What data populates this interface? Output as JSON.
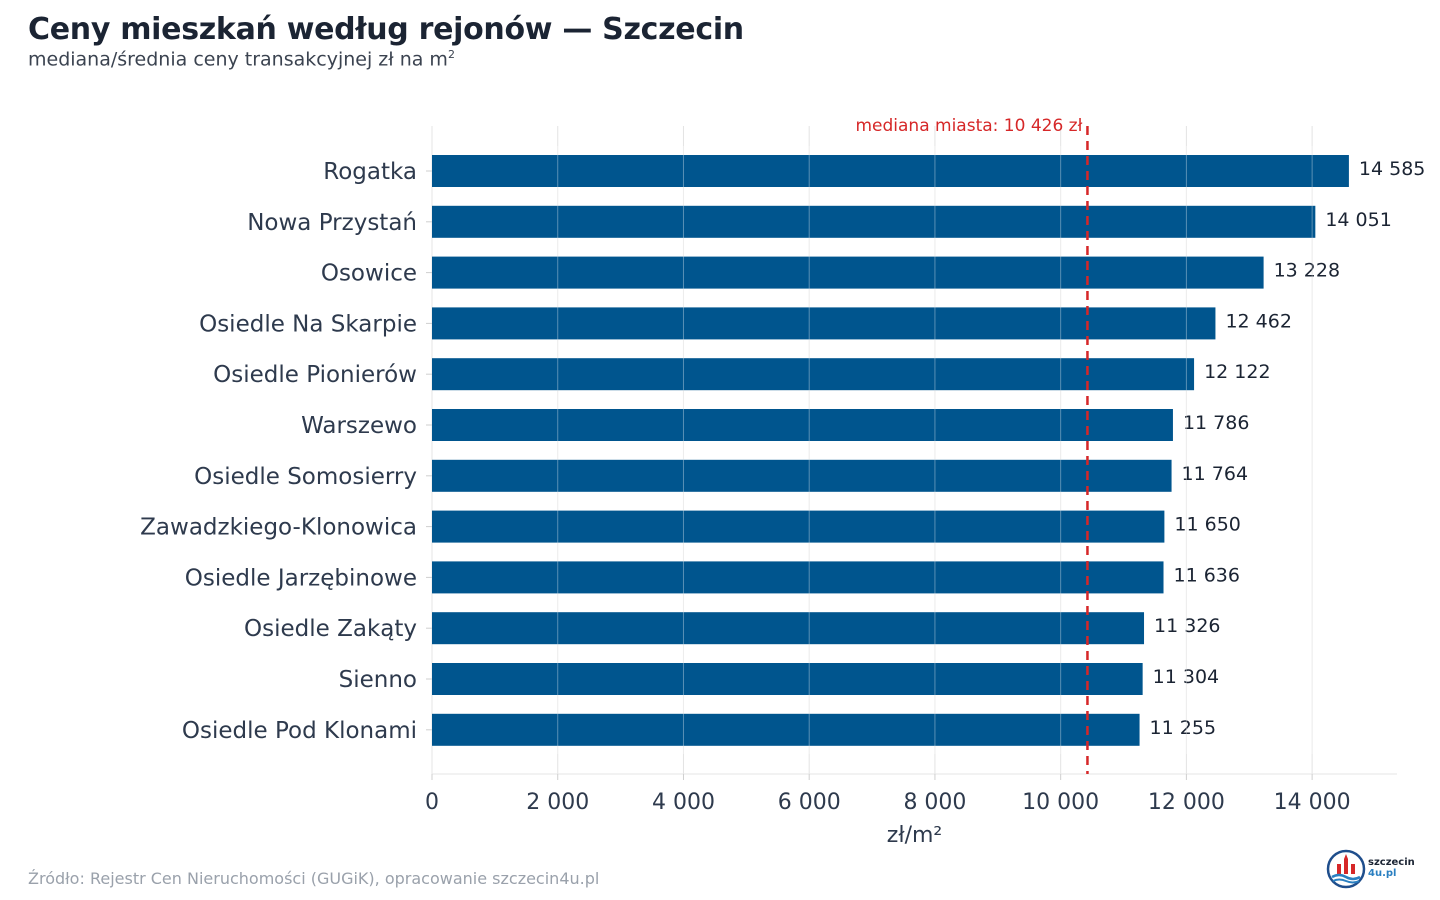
{
  "header": {
    "title": "Ceny mieszkań według rejonów — Szczecin",
    "subtitle": "mediana/średnia ceny transakcyjnej zł na m",
    "subtitle_sup": "2"
  },
  "footer": {
    "source": "Źródło: Rejestr Cen Nieruchomości (GUGiK), opracowanie szczecin4u.pl",
    "logo_line1": "szczecin",
    "logo_line2": "4u.pl"
  },
  "colors": {
    "bar": "#00558e",
    "reference_line": "#d62728",
    "grid": "#e3e3e3"
  },
  "chart_data": {
    "type": "bar",
    "orientation": "horizontal",
    "categories": [
      "Rogatka",
      "Nowa Przystań",
      "Osowice",
      "Osiedle Na Skarpie",
      "Osiedle Pionierów",
      "Warszewo",
      "Osiedle Somosierry",
      "Zawadzkiego-Klonowica",
      "Osiedle Jarzębinowe",
      "Osiedle Zakąty",
      "Sienno",
      "Osiedle Pod Klonami"
    ],
    "values": [
      14585,
      14051,
      13228,
      12462,
      12122,
      11786,
      11764,
      11650,
      11636,
      11326,
      11304,
      11255
    ],
    "value_labels": [
      "14 585",
      "14 051",
      "13 228",
      "12 462",
      "12 122",
      "11 786",
      "11 764",
      "11 650",
      "11 636",
      "11 326",
      "11 304",
      "11 255"
    ],
    "xlabel": "zł/m²",
    "xlim": [
      0,
      15350
    ],
    "xticks": [
      0,
      2000,
      4000,
      6000,
      8000,
      10000,
      12000,
      14000
    ],
    "xtick_labels": [
      "0",
      "2 000",
      "4 000",
      "6 000",
      "8 000",
      "10 000",
      "12 000",
      "14 000"
    ],
    "grid": "vertical",
    "reference_line": {
      "value": 10426,
      "label": "mediana miasta: 10 426 zł",
      "style": "dashed"
    }
  }
}
